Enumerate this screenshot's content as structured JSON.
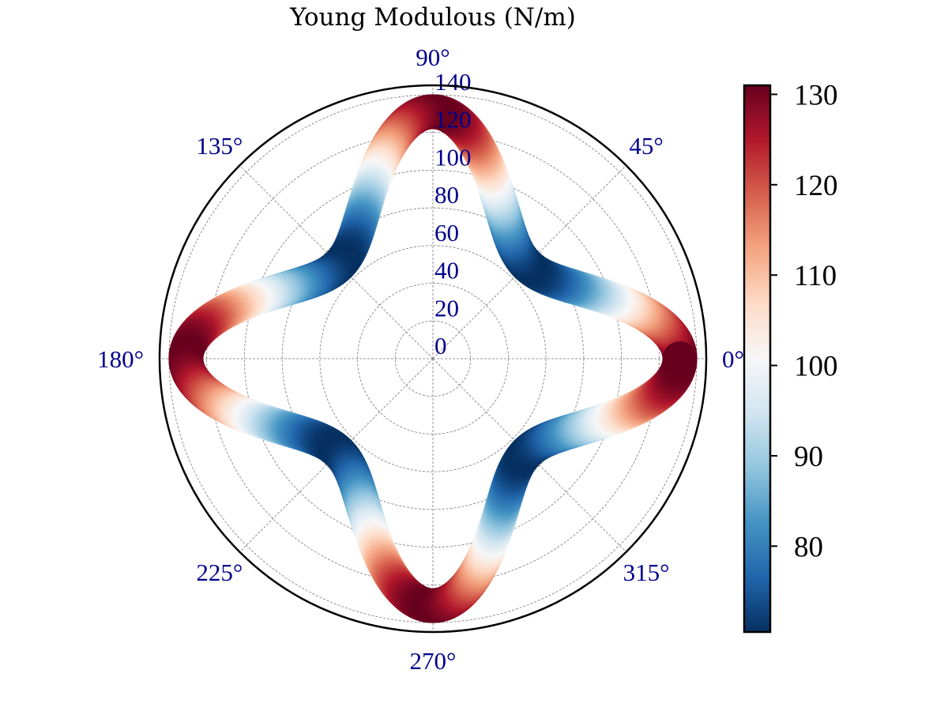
{
  "chart_data": {
    "type": "polar",
    "title": "Young Modulous (N/m)",
    "angular_ticks": [
      "0°",
      "45°",
      "90°",
      "135°",
      "180°",
      "225°",
      "270°",
      "315°"
    ],
    "angular_tick_values": [
      0,
      45,
      90,
      135,
      180,
      225,
      270,
      315
    ],
    "radial_ticks": [
      "0",
      "20",
      "40",
      "60",
      "80",
      "100",
      "120",
      "140"
    ],
    "radial_tick_values": [
      0,
      20,
      40,
      60,
      80,
      100,
      120,
      140
    ],
    "rlim": [
      0,
      145
    ],
    "grid": true,
    "curve_model": "E(theta) = 1 / (a + b * sin^2(2*theta))",
    "curve_params": {
      "a": 0.0076336,
      "b": 0.0065678
    },
    "series": [
      {
        "theta_deg": [
          0,
          15,
          30,
          45,
          60,
          75,
          90,
          105,
          120,
          135,
          150,
          165,
          180,
          195,
          210,
          225,
          240,
          255,
          270,
          285,
          300,
          315,
          330,
          345,
          360
        ],
        "values": [
          131,
          107.4,
          79.6,
          70.5,
          79.6,
          107.4,
          131,
          107.4,
          79.6,
          70.5,
          79.6,
          107.4,
          131,
          107.4,
          79.6,
          70.5,
          79.6,
          107.4,
          131,
          107.4,
          79.6,
          70.5,
          79.6,
          107.4,
          131
        ]
      }
    ],
    "colorbar": {
      "colormap": "RdBu_r",
      "range": [
        70.5,
        131
      ],
      "ticks": [
        "80",
        "90",
        "100",
        "110",
        "120",
        "130"
      ],
      "tick_values": [
        80,
        90,
        100,
        110,
        120,
        130
      ]
    }
  }
}
